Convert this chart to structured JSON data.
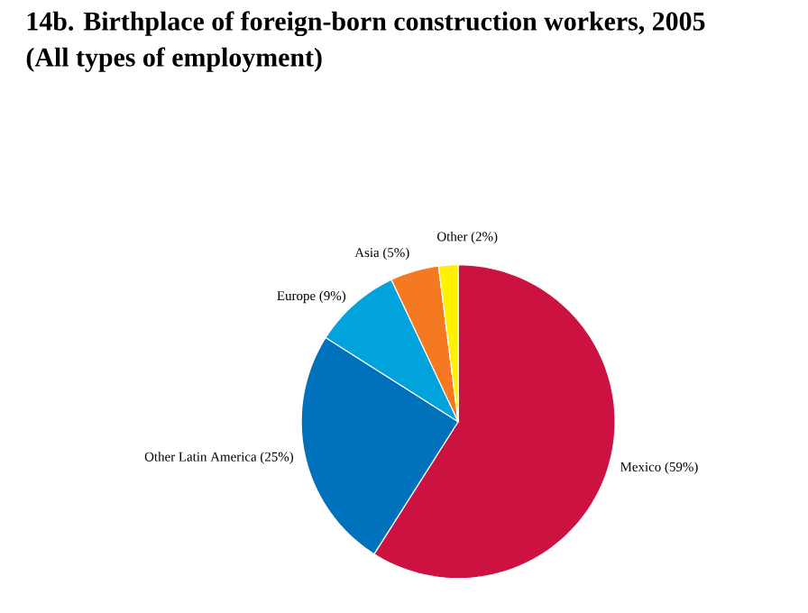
{
  "chart_data": {
    "type": "pie",
    "title": "14b. Birthplace of foreign-born construction workers, 2005",
    "subtitle": "(All types of employment)",
    "categories": [
      "Mexico",
      "Other Latin America",
      "Europe",
      "Asia",
      "Other"
    ],
    "values": [
      59,
      25,
      9,
      5,
      2
    ],
    "value_labels": [
      "(59%)",
      "(25%)",
      "(9%)",
      "(5%)",
      "(2%)"
    ],
    "colors": [
      "#cc1240",
      "#0072bc",
      "#00a3dc",
      "#f47920",
      "#fff200"
    ]
  }
}
